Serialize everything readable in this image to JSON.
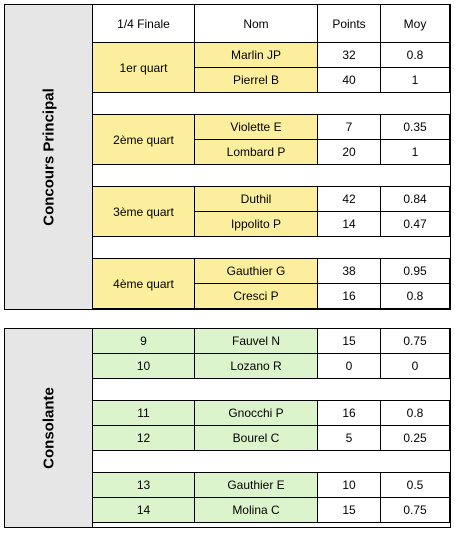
{
  "main": {
    "title": "Concours Principal",
    "headers": {
      "round": "1/4 Finale",
      "name": "Nom",
      "points": "Points",
      "avg": "Moy"
    },
    "quarters": [
      {
        "label": "1er quart",
        "rows": [
          {
            "name": "Marlin JP",
            "points": "32",
            "avg": "0.8"
          },
          {
            "name": "Pierrel B",
            "points": "40",
            "avg": "1"
          }
        ]
      },
      {
        "label": "2ème quart",
        "rows": [
          {
            "name": "Violette E",
            "points": "7",
            "avg": "0.35"
          },
          {
            "name": "Lombard P",
            "points": "20",
            "avg": "1"
          }
        ]
      },
      {
        "label": "3ème quart",
        "rows": [
          {
            "name": "Duthil",
            "points": "42",
            "avg": "0.84"
          },
          {
            "name": "Ippolito P",
            "points": "14",
            "avg": "0.47"
          }
        ]
      },
      {
        "label": "4ème quart",
        "rows": [
          {
            "name": "Gauthier G",
            "points": "38",
            "avg": "0.95"
          },
          {
            "name": "Cresci P",
            "points": "16",
            "avg": "0.8"
          }
        ]
      }
    ]
  },
  "consolante": {
    "title": "Consolante",
    "groups": [
      [
        {
          "num": "9",
          "name": "Fauvel N",
          "points": "15",
          "avg": "0.75"
        },
        {
          "num": "10",
          "name": "Lozano R",
          "points": "0",
          "avg": "0"
        }
      ],
      [
        {
          "num": "11",
          "name": "Gnocchi P",
          "points": "16",
          "avg": "0.8"
        },
        {
          "num": "12",
          "name": "Bourel C",
          "points": "5",
          "avg": "0.25"
        }
      ],
      [
        {
          "num": "13",
          "name": "Gauthier E",
          "points": "10",
          "avg": "0.5"
        },
        {
          "num": "14",
          "name": "Molina C",
          "points": "15",
          "avg": "0.75"
        }
      ]
    ]
  },
  "colors": {
    "yellow": "#fbee9c",
    "green": "#dcf4cc",
    "side": "#e6e6e6"
  }
}
